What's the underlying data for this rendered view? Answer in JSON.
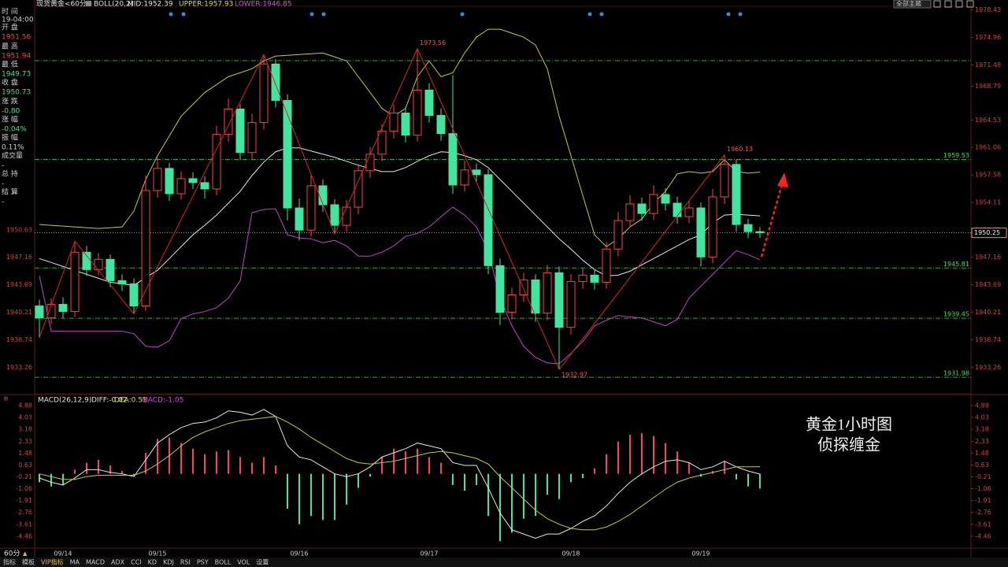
{
  "header": {
    "symbol": "现货黄金<60分>",
    "indicator": "BOLL(20,2)",
    "mid": "MID:1952.39",
    "upper": "UPPER:1957.93",
    "lower": "LOWER:1946.85"
  },
  "toolbar": {
    "theme": "全部主题"
  },
  "info_panel": [
    {
      "label": "时 间",
      "value": "19-04:00"
    },
    {
      "label": "开 盘",
      "value": "1951.56"
    },
    {
      "label": "最 高",
      "value": "1951.94"
    },
    {
      "label": "最 低",
      "value": "1949.73"
    },
    {
      "label": "收 盘",
      "value": "1950.73"
    },
    {
      "label": "涨 跌",
      "value": "-0.80"
    },
    {
      "label": "涨 幅",
      "value": "-0.04%"
    },
    {
      "label": "振 幅",
      "value": "0.11%"
    },
    {
      "label": "成交量",
      "value": "-"
    },
    {
      "label": "总 持",
      "value": "-"
    },
    {
      "label": "结 算",
      "value": "-"
    }
  ],
  "macd_header": {
    "name": "MACD(26,12,9)",
    "diff": "DIFF:-0.02",
    "dea": "DEA:0.51",
    "macd": "MACD:-1.05"
  },
  "watermark": [
    "黄金1小时图",
    "侦探缠金"
  ],
  "tabs": {
    "period": "60分",
    "items": [
      "指标",
      "模板",
      "VIP指标",
      "MA",
      "MACD",
      "ADX",
      "CCI",
      "KD",
      "KDJ",
      "RSI",
      "PSY",
      "BOLL",
      "VOL",
      "设置"
    ]
  },
  "chart_data": [
    {
      "type": "candlestick",
      "categories": [
        null,
        null,
        "09/14",
        null,
        null,
        null,
        null,
        null,
        null,
        null,
        "09/15",
        null,
        null,
        null,
        null,
        null,
        null,
        null,
        null,
        null,
        null,
        null,
        "09/16",
        null,
        null,
        null,
        null,
        null,
        null,
        null,
        null,
        null,
        null,
        "09/17",
        null,
        null,
        null,
        null,
        null,
        null,
        null,
        null,
        null,
        null,
        null,
        "09/18",
        null,
        null,
        null,
        null,
        null,
        null,
        null,
        null,
        null,
        null,
        "09/19",
        null,
        null,
        null,
        null,
        null
      ],
      "open": [
        1941.0,
        1939.5,
        1941.2,
        1940.3,
        1947.8,
        1945.6,
        1946.9,
        1944.2,
        1943.8,
        1941.0,
        1955.6,
        1958.4,
        1955.2,
        1957.1,
        1956.6,
        1955.8,
        1962.7,
        1965.9,
        1960.4,
        1964.2,
        1971.6,
        1967.0,
        1953.4,
        1950.6,
        1956.2,
        1953.8,
        1951.2,
        1953.5,
        1958.1,
        1960.2,
        1963.1,
        1965.4,
        1962.6,
        1968.3,
        1965.1,
        1962.8,
        1956.3,
        1958.2,
        1957.6,
        1946.1,
        1940.2,
        1942.4,
        1944.3,
        1940.1,
        1945.2,
        1938.3,
        1944.1,
        1944.9,
        1944.0,
        1948.2,
        1951.8,
        1953.9,
        1952.7,
        1955.1,
        1954.0,
        1952.3,
        1953.4,
        1947.2,
        1954.8,
        1958.9,
        1951.3,
        1950.4
      ],
      "high": [
        1941.8,
        1942.0,
        1942.1,
        1949.2,
        1948.6,
        1947.7,
        1947.5,
        1945.0,
        1944.5,
        1957.5,
        1959.8,
        1959.1,
        1958.0,
        1957.9,
        1957.4,
        1963.8,
        1967.2,
        1966.5,
        1965.3,
        1972.8,
        1972.2,
        1967.8,
        1954.6,
        1957.5,
        1957.0,
        1954.5,
        1954.4,
        1959.0,
        1961.1,
        1964.0,
        1966.5,
        1966.2,
        1973.56,
        1969.2,
        1966.0,
        1970.2,
        1959.4,
        1959.0,
        1958.3,
        1947.0,
        1943.3,
        1945.2,
        1945.0,
        1946.2,
        1946.0,
        1945.0,
        1945.8,
        1945.6,
        1949.1,
        1952.9,
        1955.0,
        1954.7,
        1956.3,
        1955.9,
        1954.8,
        1954.3,
        1954.1,
        1955.8,
        1960.13,
        1959.5,
        1952.0,
        1951.0
      ],
      "low": [
        1937.0,
        1938.7,
        1939.5,
        1939.6,
        1944.8,
        1944.9,
        1943.4,
        1942.9,
        1940.0,
        1940.4,
        1954.7,
        1954.3,
        1954.5,
        1955.8,
        1954.6,
        1955.0,
        1961.8,
        1959.5,
        1959.6,
        1963.3,
        1966.1,
        1951.8,
        1949.3,
        1949.8,
        1952.9,
        1950.1,
        1950.4,
        1952.6,
        1957.2,
        1959.3,
        1962.2,
        1961.7,
        1961.8,
        1964.2,
        1961.9,
        1955.2,
        1955.5,
        1956.7,
        1945.0,
        1938.6,
        1939.3,
        1941.5,
        1939.0,
        1939.2,
        1932.97,
        1937.4,
        1943.2,
        1943.1,
        1943.2,
        1947.3,
        1950.9,
        1951.8,
        1951.9,
        1953.1,
        1951.4,
        1951.5,
        1946.0,
        1946.4,
        1953.9,
        1950.4,
        1949.6,
        1949.6
      ],
      "close": [
        1939.5,
        1941.2,
        1940.3,
        1947.8,
        1945.6,
        1946.9,
        1944.2,
        1943.8,
        1941.0,
        1955.6,
        1958.4,
        1955.2,
        1957.1,
        1956.6,
        1955.8,
        1962.7,
        1965.9,
        1960.4,
        1964.2,
        1971.6,
        1967.0,
        1953.4,
        1950.6,
        1956.2,
        1953.8,
        1951.2,
        1953.5,
        1958.1,
        1960.2,
        1963.1,
        1965.4,
        1962.6,
        1968.3,
        1965.1,
        1962.8,
        1956.3,
        1958.2,
        1957.6,
        1946.1,
        1940.2,
        1942.4,
        1944.3,
        1940.1,
        1945.2,
        1938.3,
        1944.1,
        1944.9,
        1944.0,
        1948.2,
        1951.8,
        1953.9,
        1952.7,
        1955.1,
        1954.0,
        1952.3,
        1953.4,
        1947.2,
        1954.8,
        1958.9,
        1951.3,
        1950.4,
        1950.25
      ],
      "up_color": "#ff4040",
      "down_color": "#40e6a0",
      "bands": [
        {
          "color": "#c8c832",
          "values": [
            1951.3,
            1951.2,
            1951.1,
            1951.0,
            1950.9,
            1950.8,
            1950.9,
            1951.0,
            1953.0,
            1957.0,
            1960.0,
            1962.5,
            1965.0,
            1966.5,
            1968.0,
            1969.0,
            1970.0,
            1970.5,
            1971.0,
            1972.0,
            1972.6,
            1972.7,
            1972.8,
            1972.9,
            1973.0,
            1972.5,
            1972.0,
            1970.0,
            1968.0,
            1966.0,
            1965.0,
            1966.0,
            1970.0,
            1972.0,
            1970.0,
            1970.5,
            1973.0,
            1975.0,
            1976.0,
            1976.0,
            1975.5,
            1975.0,
            1974.0,
            1971.0,
            1965.0,
            1960.0,
            1955.0,
            1950.0,
            1948.5,
            1949.5,
            1951.0,
            1952.0,
            1954.0,
            1955.5,
            1957.7,
            1958.0,
            1957.8,
            1958.0,
            1959.5,
            1958.0,
            1957.8,
            1957.93
          ]
        },
        {
          "color": "#e6e6e6",
          "values": [
            1947.0,
            1946.5,
            1946.0,
            1945.5,
            1945.0,
            1944.5,
            1944.0,
            1943.8,
            1943.6,
            1944.6,
            1945.5,
            1947.0,
            1948.5,
            1950.0,
            1951.2,
            1952.5,
            1954.0,
            1955.5,
            1957.5,
            1959.2,
            1960.5,
            1961.0,
            1961.0,
            1960.6,
            1960.2,
            1959.8,
            1959.3,
            1958.8,
            1958.4,
            1958.0,
            1958.0,
            1958.5,
            1959.3,
            1960.0,
            1960.5,
            1960.4,
            1960.0,
            1959.5,
            1958.5,
            1957.0,
            1955.5,
            1954.0,
            1952.5,
            1951.0,
            1949.5,
            1948.2,
            1946.8,
            1945.6,
            1944.8,
            1944.9,
            1945.4,
            1946.2,
            1947.0,
            1947.8,
            1948.6,
            1949.4,
            1950.0,
            1951.5,
            1952.5,
            1952.6,
            1952.5,
            1952.39
          ]
        },
        {
          "color": "#c040c8",
          "values": [
            1944.8,
            1937.8,
            1937.8,
            1937.8,
            1937.8,
            1937.8,
            1937.8,
            1937.8,
            1937.5,
            1935.9,
            1935.8,
            1936.6,
            1939.4,
            1940.0,
            1940.3,
            1940.8,
            1942.0,
            1944.2,
            1952.8,
            1953.2,
            1953.3,
            1950.0,
            1949.6,
            1949.5,
            1949.0,
            1949.3,
            1948.6,
            1947.3,
            1947.3,
            1947.8,
            1948.6,
            1949.8,
            1950.2,
            1951.0,
            1952.3,
            1953.5,
            1952.5,
            1951.0,
            1948.0,
            1942.0,
            1938.5,
            1935.9,
            1934.5,
            1933.8,
            1933.7,
            1935.0,
            1936.5,
            1938.5,
            1939.2,
            1939.8,
            1939.6,
            1939.5,
            1939.0,
            1938.5,
            1939.3,
            1942.0,
            1943.5,
            1945.0,
            1946.5,
            1948.0,
            1947.5,
            1946.85
          ]
        }
      ],
      "zigzag_color": "#e02020",
      "levels": [
        1959.53,
        1945.81,
        1939.45,
        1931.98
      ],
      "top_level": 1972.03,
      "level_color": "#2ea82e",
      "last": 1950.25,
      "last_color": "#e0a040",
      "ylim": [
        1929.9,
        1978.9
      ],
      "yticks": [
        1978.43,
        1974.96,
        1971.48,
        1968.79,
        1964.53,
        1961.06,
        1957.58,
        1954.11,
        1950.63,
        1947.16,
        1943.69,
        1940.21,
        1936.74,
        1933.26
      ]
    },
    {
      "type": "macd",
      "histogram": [
        -0.6,
        -0.9,
        -0.8,
        0.3,
        0.8,
        1.0,
        0.6,
        0.2,
        -0.1,
        1.5,
        2.5,
        2.6,
        2.2,
        1.8,
        1.4,
        1.6,
        1.7,
        1.2,
        0.8,
        1.2,
        0.6,
        -2.5,
        -3.6,
        -3.0,
        -3.3,
        -3.3,
        -2.2,
        -1.0,
        -0.2,
        1.2,
        1.8,
        1.6,
        1.8,
        1.2,
        0.8,
        -0.8,
        -1.2,
        -0.8,
        -3.0,
        -4.8,
        -4.2,
        -3.2,
        -3.0,
        -1.5,
        -1.8,
        -0.6,
        -0.3,
        0.4,
        1.4,
        2.3,
        2.8,
        2.9,
        2.7,
        2.2,
        1.6,
        0.8,
        -0.2,
        0.2,
        0.9,
        -0.4,
        -0.9,
        -1.05
      ],
      "pos_color": "#ff4060",
      "neg_color": "#40e6a0",
      "series": [
        {
          "color": "#e6e6e6",
          "values": [
            -0.3,
            -0.6,
            -0.8,
            -0.3,
            0.3,
            0.3,
            0.1,
            0.0,
            -0.2,
            1.0,
            2.2,
            2.8,
            3.3,
            3.6,
            3.7,
            4.0,
            4.5,
            4.4,
            4.2,
            4.6,
            4.1,
            2.0,
            1.2,
            1.0,
            0.5,
            0.0,
            -0.2,
            0.0,
            0.5,
            1.2,
            1.5,
            1.8,
            2.2,
            2.0,
            1.8,
            0.8,
            0.6,
            0.6,
            -1.0,
            -2.8,
            -4.0,
            -4.3,
            -4.6,
            -4.3,
            -4.3,
            -3.9,
            -3.4,
            -3.0,
            -2.3,
            -1.4,
            -0.6,
            0.0,
            0.5,
            0.9,
            1.0,
            0.8,
            0.3,
            0.5,
            0.9,
            0.5,
            0.2,
            -0.02
          ]
        },
        {
          "color": "#c8c832",
          "values": [
            0.0,
            -0.2,
            -0.4,
            -0.4,
            -0.2,
            -0.1,
            -0.1,
            -0.1,
            -0.1,
            0.2,
            0.7,
            1.3,
            2.0,
            2.6,
            3.0,
            3.3,
            3.6,
            3.8,
            3.9,
            4.0,
            4.1,
            3.7,
            3.2,
            2.6,
            2.1,
            1.6,
            1.1,
            0.8,
            0.7,
            0.8,
            0.9,
            1.1,
            1.3,
            1.5,
            1.6,
            1.5,
            1.3,
            1.1,
            0.7,
            -0.2,
            -1.0,
            -1.8,
            -2.6,
            -3.2,
            -3.6,
            -3.9,
            -4.0,
            -4.0,
            -3.8,
            -3.4,
            -2.9,
            -2.3,
            -1.7,
            -1.1,
            -0.6,
            -0.3,
            -0.1,
            0.1,
            0.3,
            0.5,
            0.5,
            0.51
          ]
        }
      ],
      "ylim": [
        -5.25,
        5.44
      ],
      "yticks": [
        4.88,
        4.03,
        3.18,
        2.33,
        1.48,
        0.63,
        -0.21,
        -1.06,
        -1.91,
        -2.76,
        -3.61,
        -4.46
      ]
    }
  ]
}
